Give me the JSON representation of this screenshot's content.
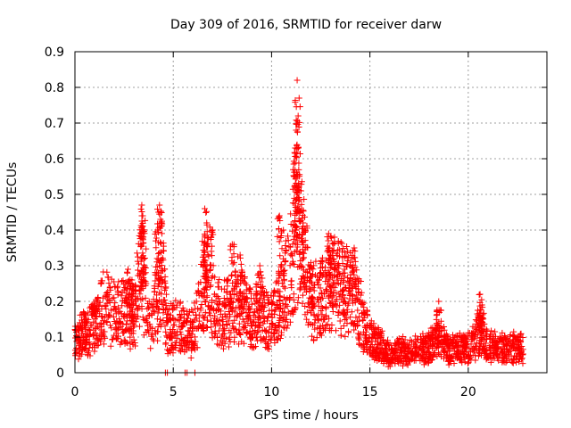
{
  "chart_data": {
    "type": "scatter",
    "title": "Day 309 of 2016, SRMTID for receiver darw",
    "xlabel": "GPS time / hours",
    "ylabel": "SRMTID / TECUs",
    "xlim": [
      0,
      24
    ],
    "ylim": [
      0,
      0.9
    ],
    "x_ticks": [
      0,
      5,
      10,
      15,
      20
    ],
    "x_tick_labels": [
      "0",
      "5",
      "10",
      "15",
      "20"
    ],
    "y_ticks": [
      0,
      0.1,
      0.2,
      0.3,
      0.4,
      0.5,
      0.6,
      0.7,
      0.8,
      0.9
    ],
    "y_tick_labels": [
      "0",
      "0.1",
      "0.2",
      "0.3",
      "0.4",
      "0.5",
      "0.6",
      "0.7",
      "0.8",
      "0.9"
    ],
    "grid": true,
    "marker": "+",
    "color": "#ff0000",
    "envelope": [
      [
        0,
        0.09
      ],
      [
        0.5,
        0.11
      ],
      [
        1.0,
        0.13
      ],
      [
        1.5,
        0.19
      ],
      [
        2.0,
        0.16
      ],
      [
        2.5,
        0.17
      ],
      [
        3.0,
        0.16
      ],
      [
        3.4,
        0.3
      ],
      [
        3.7,
        0.14
      ],
      [
        4.0,
        0.14
      ],
      [
        4.4,
        0.3
      ],
      [
        4.7,
        0.11
      ],
      [
        5.0,
        0.13
      ],
      [
        5.5,
        0.12
      ],
      [
        6.0,
        0.11
      ],
      [
        6.5,
        0.21
      ],
      [
        6.8,
        0.3
      ],
      [
        7.0,
        0.18
      ],
      [
        7.5,
        0.16
      ],
      [
        8.0,
        0.19
      ],
      [
        8.5,
        0.18
      ],
      [
        9.0,
        0.16
      ],
      [
        9.5,
        0.16
      ],
      [
        10.0,
        0.14
      ],
      [
        10.5,
        0.2
      ],
      [
        11.0,
        0.29
      ],
      [
        11.3,
        0.44
      ],
      [
        11.6,
        0.35
      ],
      [
        12.0,
        0.2
      ],
      [
        12.5,
        0.2
      ],
      [
        13.0,
        0.25
      ],
      [
        13.5,
        0.24
      ],
      [
        14.0,
        0.22
      ],
      [
        14.5,
        0.17
      ],
      [
        15.0,
        0.1
      ],
      [
        15.5,
        0.08
      ],
      [
        16.0,
        0.05
      ],
      [
        16.5,
        0.06
      ],
      [
        17.0,
        0.06
      ],
      [
        17.5,
        0.07
      ],
      [
        18.0,
        0.07
      ],
      [
        18.5,
        0.1
      ],
      [
        19.0,
        0.06
      ],
      [
        19.5,
        0.07
      ],
      [
        20.0,
        0.07
      ],
      [
        20.5,
        0.11
      ],
      [
        21.0,
        0.08
      ],
      [
        21.5,
        0.07
      ],
      [
        22.0,
        0.07
      ],
      [
        22.5,
        0.07
      ],
      [
        22.8,
        0.07
      ]
    ],
    "peaks": [
      [
        11.3,
        0.82
      ],
      [
        11.4,
        0.77
      ],
      [
        11.35,
        0.72
      ],
      [
        11.2,
        0.63
      ],
      [
        11.25,
        0.68
      ],
      [
        11.2,
        0.55
      ],
      [
        11.5,
        0.51
      ],
      [
        11.6,
        0.42
      ],
      [
        11.7,
        0.4
      ],
      [
        3.4,
        0.47
      ],
      [
        3.45,
        0.44
      ],
      [
        3.5,
        0.4
      ],
      [
        4.3,
        0.47
      ],
      [
        4.35,
        0.43
      ],
      [
        4.2,
        0.4
      ],
      [
        6.6,
        0.46
      ],
      [
        6.7,
        0.42
      ],
      [
        6.6,
        0.38
      ],
      [
        7.0,
        0.4
      ],
      [
        8.0,
        0.36
      ],
      [
        8.4,
        0.33
      ],
      [
        10.4,
        0.44
      ],
      [
        10.6,
        0.4
      ],
      [
        12.0,
        0.3
      ],
      [
        12.9,
        0.39
      ],
      [
        13.2,
        0.38
      ],
      [
        13.0,
        0.33
      ],
      [
        14.2,
        0.35
      ],
      [
        14.0,
        0.3
      ],
      [
        9.4,
        0.3
      ],
      [
        18.5,
        0.2
      ],
      [
        20.6,
        0.22
      ],
      [
        20.7,
        0.19
      ],
      [
        2.7,
        0.29
      ],
      [
        2.9,
        0.26
      ]
    ],
    "outliers": [
      [
        4.6,
        0.0
      ],
      [
        4.7,
        0.0
      ],
      [
        5.6,
        0.0
      ],
      [
        5.7,
        0.0
      ],
      [
        6.1,
        0.0
      ]
    ],
    "n_points": 2600
  }
}
